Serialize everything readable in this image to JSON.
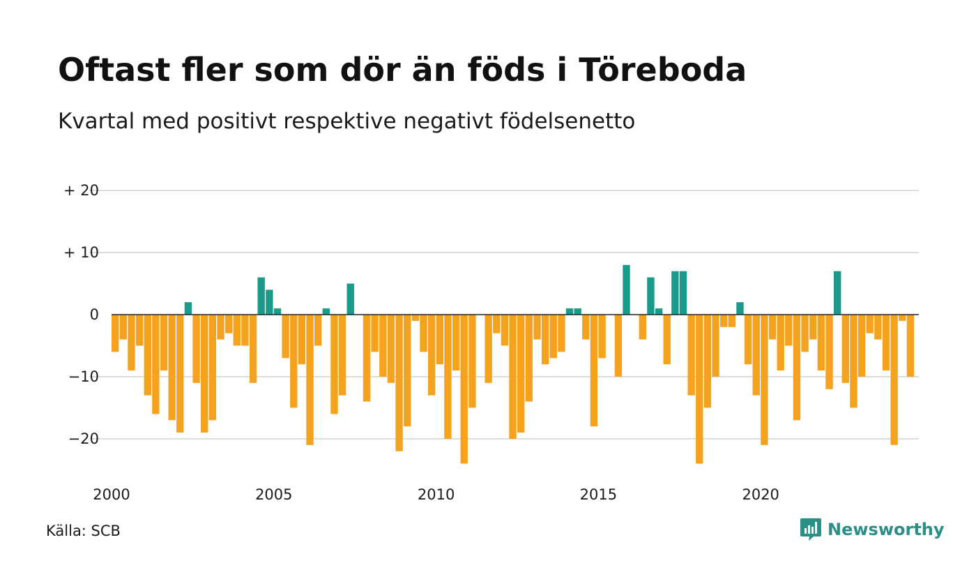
{
  "title": "Oftast fler som dör än föds i Töreboda",
  "subtitle": "Kvartal med positivt respektive negativt födelsenetto",
  "source": "Källa: SCB",
  "brand": "Newsworthy",
  "colors": {
    "positive": "#1a9a8a",
    "negative": "#f5a31f",
    "grid": "#dddddd",
    "zero_line": "#222222",
    "brand": "#2a8f86"
  },
  "chart_data": {
    "type": "bar",
    "title": "Oftast fler som dör än föds i Töreboda",
    "subtitle": "Kvartal med positivt respektive negativt födelsenetto",
    "xlabel": "",
    "ylabel": "",
    "ylim": [
      -25,
      22
    ],
    "grid": true,
    "y_ticks": [
      {
        "value": 20,
        "label": "+ 20"
      },
      {
        "value": 10,
        "label": "+ 10"
      },
      {
        "value": 0,
        "label": "0"
      },
      {
        "value": -10,
        "label": "−10"
      },
      {
        "value": -20,
        "label": "−20"
      }
    ],
    "x_ticks": [
      "2000",
      "2005",
      "2010",
      "2015",
      "2020"
    ],
    "start_year": 2000,
    "values": [
      -6,
      -4,
      -9,
      -5,
      -13,
      -16,
      -9,
      -17,
      -19,
      2,
      -11,
      -19,
      -17,
      -4,
      -3,
      -5,
      -5,
      -11,
      6,
      4,
      1,
      -7,
      -15,
      -8,
      -21,
      -5,
      1,
      -16,
      -13,
      5,
      0,
      -14,
      -6,
      -10,
      -11,
      -22,
      -18,
      -1,
      -6,
      -13,
      -8,
      -20,
      -9,
      -24,
      -15,
      0,
      -11,
      -3,
      -5,
      -20,
      -19,
      -14,
      -4,
      -8,
      -7,
      -6,
      1,
      1,
      -4,
      -18,
      -7,
      0,
      -10,
      8,
      0,
      -4,
      6,
      1,
      -8,
      7,
      7,
      -13,
      -24,
      -15,
      -10,
      -2,
      -2,
      2,
      -8,
      -13,
      -21,
      -4,
      -9,
      -5,
      -17,
      -6,
      -4,
      -9,
      -12,
      7,
      -11,
      -15,
      -10,
      -3,
      -4,
      -9,
      -21,
      -1,
      -10
    ]
  }
}
